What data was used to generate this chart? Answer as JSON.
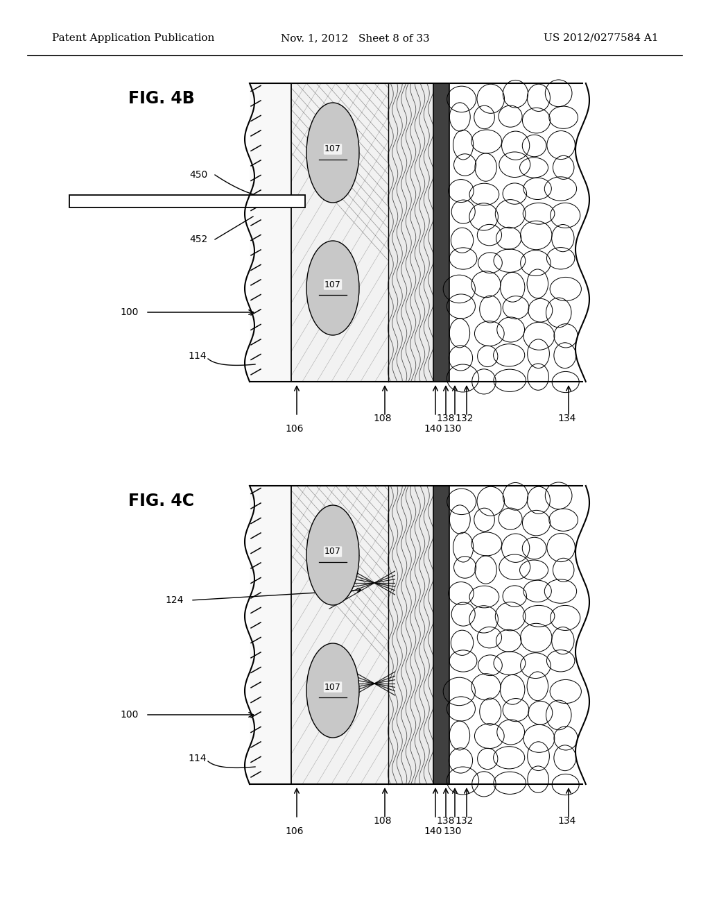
{
  "header_left": "Patent Application Publication",
  "header_mid": "Nov. 1, 2012   Sheet 8 of 33",
  "header_right": "US 2012/0277584 A1",
  "fig4b_label": "FIG. 4B",
  "fig4c_label": "FIG. 4C",
  "background": "#ffffff",
  "line_color": "#000000",
  "tissue_fill": "#e8e8e8",
  "bubble_fill": "#ffffff",
  "stipple_fill": "#d0d0d0"
}
